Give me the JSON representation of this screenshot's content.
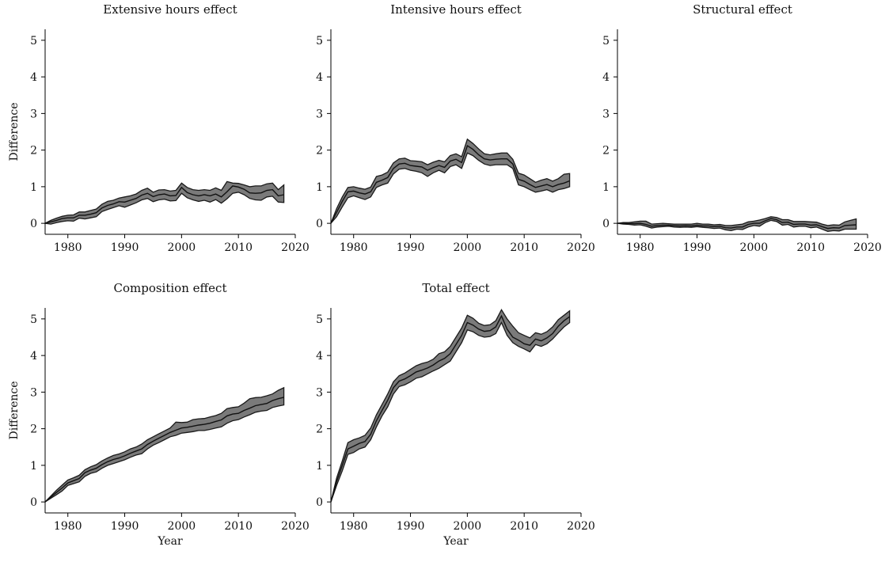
{
  "figure": {
    "colors": {
      "band_fill": "#7a7a7a",
      "band_edge": "#1a1a1a",
      "center_line": "#111111",
      "axis": "#000000"
    }
  },
  "chart_data": [
    {
      "type": "area",
      "title": "Extensive hours effect",
      "xlabel": "",
      "ylabel": "Difference",
      "xlim": [
        1976,
        2020
      ],
      "ylim": [
        -0.3,
        5.3
      ],
      "xticks": [
        1980,
        1990,
        2000,
        2010,
        2020
      ],
      "yticks": [
        0,
        1,
        2,
        3,
        4,
        5
      ],
      "grid": false,
      "x": [
        1976,
        1977,
        1978,
        1979,
        1980,
        1981,
        1982,
        1983,
        1984,
        1985,
        1986,
        1987,
        1988,
        1989,
        1990,
        1991,
        1992,
        1993,
        1994,
        1995,
        1996,
        1997,
        1998,
        1999,
        2000,
        2001,
        2002,
        2003,
        2004,
        2005,
        2006,
        2007,
        2008,
        2009,
        2010,
        2011,
        2012,
        2013,
        2014,
        2015,
        2016,
        2017,
        2018
      ],
      "lower": [
        0,
        -0.02,
        0.02,
        0.05,
        0.07,
        0.06,
        0.14,
        0.12,
        0.15,
        0.18,
        0.32,
        0.38,
        0.43,
        0.48,
        0.44,
        0.5,
        0.56,
        0.64,
        0.68,
        0.59,
        0.64,
        0.66,
        0.61,
        0.62,
        0.82,
        0.7,
        0.64,
        0.6,
        0.63,
        0.58,
        0.65,
        0.55,
        0.67,
        0.82,
        0.85,
        0.78,
        0.68,
        0.64,
        0.63,
        0.72,
        0.74,
        0.58,
        0.57
      ],
      "mid": [
        0,
        0.04,
        0.08,
        0.13,
        0.15,
        0.15,
        0.22,
        0.22,
        0.25,
        0.29,
        0.42,
        0.49,
        0.53,
        0.59,
        0.58,
        0.63,
        0.68,
        0.77,
        0.82,
        0.73,
        0.78,
        0.8,
        0.75,
        0.76,
        0.98,
        0.84,
        0.78,
        0.75,
        0.78,
        0.75,
        0.8,
        0.72,
        0.86,
        1.02,
        0.99,
        0.93,
        0.83,
        0.82,
        0.83,
        0.9,
        0.92,
        0.75,
        0.78
      ],
      "upper": [
        0,
        0.08,
        0.14,
        0.19,
        0.22,
        0.23,
        0.31,
        0.31,
        0.35,
        0.39,
        0.52,
        0.6,
        0.63,
        0.69,
        0.72,
        0.75,
        0.8,
        0.9,
        0.96,
        0.85,
        0.91,
        0.92,
        0.88,
        0.9,
        1.1,
        0.98,
        0.92,
        0.9,
        0.92,
        0.9,
        0.97,
        0.9,
        1.14,
        1.1,
        1.09,
        1.05,
        1.0,
        1.02,
        1.02,
        1.08,
        1.1,
        0.92,
        1.05
      ]
    },
    {
      "type": "area",
      "title": "Intensive hours effect",
      "xlabel": "",
      "ylabel": "",
      "xlim": [
        1976,
        2020
      ],
      "ylim": [
        -0.3,
        5.3
      ],
      "xticks": [
        1980,
        1990,
        2000,
        2010,
        2020
      ],
      "yticks": [
        0,
        1,
        2,
        3,
        4,
        5
      ],
      "grid": false,
      "x": [
        1976,
        1977,
        1978,
        1979,
        1980,
        1981,
        1982,
        1983,
        1984,
        1985,
        1986,
        1987,
        1988,
        1989,
        1990,
        1991,
        1992,
        1993,
        1994,
        1995,
        1996,
        1997,
        1998,
        1999,
        2000,
        2001,
        2002,
        2003,
        2004,
        2005,
        2006,
        2007,
        2008,
        2009,
        2010,
        2011,
        2012,
        2013,
        2014,
        2015,
        2016,
        2017,
        2018
      ],
      "lower": [
        0,
        0.18,
        0.45,
        0.7,
        0.75,
        0.7,
        0.65,
        0.72,
        0.98,
        1.05,
        1.1,
        1.35,
        1.48,
        1.5,
        1.45,
        1.42,
        1.38,
        1.28,
        1.38,
        1.45,
        1.38,
        1.55,
        1.6,
        1.5,
        1.92,
        1.85,
        1.72,
        1.62,
        1.58,
        1.6,
        1.6,
        1.6,
        1.5,
        1.05,
        1.0,
        0.92,
        0.85,
        0.88,
        0.92,
        0.85,
        0.92,
        0.95,
        1.0
      ],
      "mid": [
        0,
        0.3,
        0.6,
        0.86,
        0.88,
        0.83,
        0.8,
        0.86,
        1.12,
        1.18,
        1.25,
        1.5,
        1.62,
        1.64,
        1.58,
        1.56,
        1.54,
        1.45,
        1.52,
        1.58,
        1.53,
        1.7,
        1.75,
        1.66,
        2.12,
        2.02,
        1.87,
        1.76,
        1.73,
        1.75,
        1.76,
        1.76,
        1.62,
        1.2,
        1.15,
        1.06,
        0.98,
        1.02,
        1.06,
        1.0,
        1.06,
        1.1,
        1.16
      ],
      "upper": [
        0,
        0.4,
        0.72,
        0.98,
        1.0,
        0.96,
        0.93,
        0.99,
        1.28,
        1.32,
        1.4,
        1.65,
        1.76,
        1.78,
        1.71,
        1.7,
        1.68,
        1.6,
        1.67,
        1.72,
        1.68,
        1.85,
        1.9,
        1.82,
        2.3,
        2.18,
        2.03,
        1.9,
        1.87,
        1.9,
        1.92,
        1.92,
        1.75,
        1.37,
        1.32,
        1.22,
        1.12,
        1.18,
        1.22,
        1.15,
        1.22,
        1.34,
        1.36
      ]
    },
    {
      "type": "area",
      "title": "Structural effect",
      "xlabel": "",
      "ylabel": "",
      "xlim": [
        1976,
        2020
      ],
      "ylim": [
        -0.3,
        5.3
      ],
      "xticks": [
        1980,
        1990,
        2000,
        2010,
        2020
      ],
      "yticks": [
        0,
        1,
        2,
        3,
        4,
        5
      ],
      "grid": false,
      "x": [
        1976,
        1977,
        1978,
        1979,
        1980,
        1981,
        1982,
        1983,
        1984,
        1985,
        1986,
        1987,
        1988,
        1989,
        1990,
        1991,
        1992,
        1993,
        1994,
        1995,
        1996,
        1997,
        1998,
        1999,
        2000,
        2001,
        2002,
        2003,
        2004,
        2005,
        2006,
        2007,
        2008,
        2009,
        2010,
        2011,
        2012,
        2013,
        2014,
        2015,
        2016,
        2017,
        2018
      ],
      "lower": [
        0,
        -0.02,
        -0.03,
        -0.05,
        -0.04,
        -0.08,
        -0.13,
        -0.1,
        -0.09,
        -0.08,
        -0.1,
        -0.11,
        -0.1,
        -0.11,
        -0.09,
        -0.11,
        -0.12,
        -0.14,
        -0.13,
        -0.18,
        -0.2,
        -0.16,
        -0.17,
        -0.1,
        -0.06,
        -0.08,
        0.02,
        0.08,
        0.05,
        -0.05,
        -0.03,
        -0.1,
        -0.08,
        -0.08,
        -0.12,
        -0.1,
        -0.16,
        -0.22,
        -0.2,
        -0.21,
        -0.16,
        -0.16,
        -0.16
      ],
      "mid": [
        0,
        0.0,
        -0.01,
        -0.01,
        0.0,
        -0.03,
        -0.08,
        -0.06,
        -0.05,
        -0.05,
        -0.06,
        -0.07,
        -0.06,
        -0.07,
        -0.05,
        -0.07,
        -0.07,
        -0.09,
        -0.08,
        -0.12,
        -0.13,
        -0.1,
        -0.1,
        -0.03,
        0.0,
        0.0,
        0.07,
        0.13,
        0.1,
        0.02,
        0.03,
        -0.03,
        -0.02,
        -0.02,
        -0.05,
        -0.04,
        -0.09,
        -0.14,
        -0.12,
        -0.13,
        -0.06,
        -0.05,
        -0.04
      ],
      "upper": [
        0,
        0.02,
        0.02,
        0.04,
        0.06,
        0.06,
        -0.02,
        -0.01,
        0.0,
        -0.01,
        -0.02,
        -0.02,
        -0.02,
        -0.02,
        0.0,
        -0.02,
        -0.02,
        -0.04,
        -0.03,
        -0.06,
        -0.06,
        -0.04,
        -0.02,
        0.04,
        0.06,
        0.09,
        0.13,
        0.18,
        0.16,
        0.1,
        0.1,
        0.05,
        0.05,
        0.05,
        0.04,
        0.03,
        -0.02,
        -0.06,
        -0.04,
        -0.05,
        0.04,
        0.08,
        0.12
      ]
    },
    {
      "type": "area",
      "title": "Composition effect",
      "xlabel": "Year",
      "ylabel": "Difference",
      "xlim": [
        1976,
        2020
      ],
      "ylim": [
        -0.3,
        5.3
      ],
      "xticks": [
        1980,
        1990,
        2000,
        2010,
        2020
      ],
      "yticks": [
        0,
        1,
        2,
        3,
        4,
        5
      ],
      "grid": false,
      "x": [
        1976,
        1977,
        1978,
        1979,
        1980,
        1981,
        1982,
        1983,
        1984,
        1985,
        1986,
        1987,
        1988,
        1989,
        1990,
        1991,
        1992,
        1993,
        1994,
        1995,
        1996,
        1997,
        1998,
        1999,
        2000,
        2001,
        2002,
        2003,
        2004,
        2005,
        2006,
        2007,
        2008,
        2009,
        2010,
        2011,
        2012,
        2013,
        2014,
        2015,
        2016,
        2017,
        2018
      ],
      "lower": [
        0,
        0.1,
        0.2,
        0.3,
        0.45,
        0.5,
        0.55,
        0.7,
        0.78,
        0.82,
        0.92,
        1.0,
        1.05,
        1.1,
        1.15,
        1.22,
        1.28,
        1.32,
        1.45,
        1.55,
        1.62,
        1.7,
        1.78,
        1.82,
        1.88,
        1.9,
        1.92,
        1.95,
        1.95,
        1.98,
        2.02,
        2.05,
        2.15,
        2.22,
        2.25,
        2.32,
        2.38,
        2.45,
        2.48,
        2.5,
        2.58,
        2.62,
        2.65
      ],
      "mid": [
        0,
        0.13,
        0.26,
        0.38,
        0.52,
        0.58,
        0.64,
        0.8,
        0.87,
        0.92,
        1.02,
        1.1,
        1.16,
        1.2,
        1.26,
        1.33,
        1.39,
        1.45,
        1.57,
        1.66,
        1.74,
        1.82,
        1.9,
        1.96,
        2.02,
        2.04,
        2.07,
        2.1,
        2.12,
        2.15,
        2.2,
        2.24,
        2.35,
        2.4,
        2.42,
        2.5,
        2.56,
        2.63,
        2.66,
        2.69,
        2.77,
        2.82,
        2.86
      ],
      "upper": [
        0,
        0.16,
        0.32,
        0.46,
        0.6,
        0.66,
        0.73,
        0.88,
        0.96,
        1.02,
        1.12,
        1.2,
        1.27,
        1.31,
        1.37,
        1.45,
        1.5,
        1.58,
        1.7,
        1.78,
        1.86,
        1.94,
        2.02,
        2.18,
        2.17,
        2.18,
        2.25,
        2.27,
        2.28,
        2.32,
        2.36,
        2.42,
        2.55,
        2.58,
        2.6,
        2.7,
        2.82,
        2.85,
        2.86,
        2.9,
        2.95,
        3.05,
        3.12
      ]
    },
    {
      "type": "area",
      "title": "Total effect",
      "xlabel": "Year",
      "ylabel": "",
      "xlim": [
        1976,
        2020
      ],
      "ylim": [
        -0.3,
        5.3
      ],
      "xticks": [
        1980,
        1990,
        2000,
        2010,
        2020
      ],
      "yticks": [
        0,
        1,
        2,
        3,
        4,
        5
      ],
      "grid": false,
      "x": [
        1976,
        1977,
        1978,
        1979,
        1980,
        1981,
        1982,
        1983,
        1984,
        1985,
        1986,
        1987,
        1988,
        1989,
        1990,
        1991,
        1992,
        1993,
        1994,
        1995,
        1996,
        1997,
        1998,
        1999,
        2000,
        2001,
        2002,
        2003,
        2004,
        2005,
        2006,
        2007,
        2008,
        2009,
        2010,
        2011,
        2012,
        2013,
        2014,
        2015,
        2016,
        2017,
        2018
      ],
      "lower": [
        0,
        0.45,
        0.85,
        1.3,
        1.35,
        1.45,
        1.5,
        1.7,
        2.05,
        2.35,
        2.6,
        2.95,
        3.15,
        3.2,
        3.28,
        3.38,
        3.42,
        3.5,
        3.58,
        3.65,
        3.75,
        3.85,
        4.1,
        4.35,
        4.7,
        4.65,
        4.55,
        4.5,
        4.52,
        4.6,
        4.9,
        4.55,
        4.35,
        4.25,
        4.18,
        4.1,
        4.3,
        4.25,
        4.32,
        4.45,
        4.62,
        4.78,
        4.9
      ],
      "mid": [
        0,
        0.55,
        1.0,
        1.45,
        1.52,
        1.6,
        1.65,
        1.85,
        2.22,
        2.5,
        2.78,
        3.12,
        3.3,
        3.36,
        3.45,
        3.55,
        3.6,
        3.66,
        3.74,
        3.85,
        3.92,
        4.05,
        4.3,
        4.55,
        4.9,
        4.83,
        4.72,
        4.66,
        4.68,
        4.78,
        5.08,
        4.72,
        4.5,
        4.42,
        4.32,
        4.28,
        4.45,
        4.4,
        4.48,
        4.6,
        4.8,
        4.95,
        5.06
      ],
      "upper": [
        0,
        0.65,
        1.12,
        1.62,
        1.7,
        1.75,
        1.82,
        2.02,
        2.38,
        2.66,
        2.95,
        3.28,
        3.45,
        3.52,
        3.62,
        3.72,
        3.78,
        3.82,
        3.9,
        4.05,
        4.1,
        4.25,
        4.5,
        4.75,
        5.1,
        5.02,
        4.88,
        4.82,
        4.84,
        4.95,
        5.25,
        5.0,
        4.8,
        4.62,
        4.55,
        4.48,
        4.62,
        4.58,
        4.65,
        4.78,
        4.98,
        5.1,
        5.22
      ]
    }
  ]
}
